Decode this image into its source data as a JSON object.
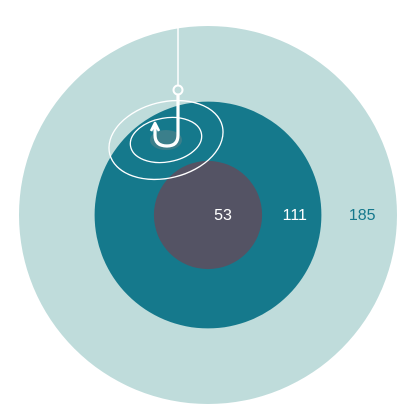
{
  "chart_data": {
    "type": "nested_circles",
    "title": "",
    "series": [
      {
        "value": 185,
        "label": "185",
        "color": "#bfdcdb",
        "label_color": "#15788c"
      },
      {
        "value": 111,
        "label": "111",
        "color": "#15798c",
        "label_color": "#ffffff"
      },
      {
        "value": 53,
        "label": "53",
        "color": "#545364",
        "label_color": "#ffffff"
      }
    ]
  },
  "decoration": {
    "icon": "fishing-hook-icon",
    "line_color": "#ffffff"
  }
}
